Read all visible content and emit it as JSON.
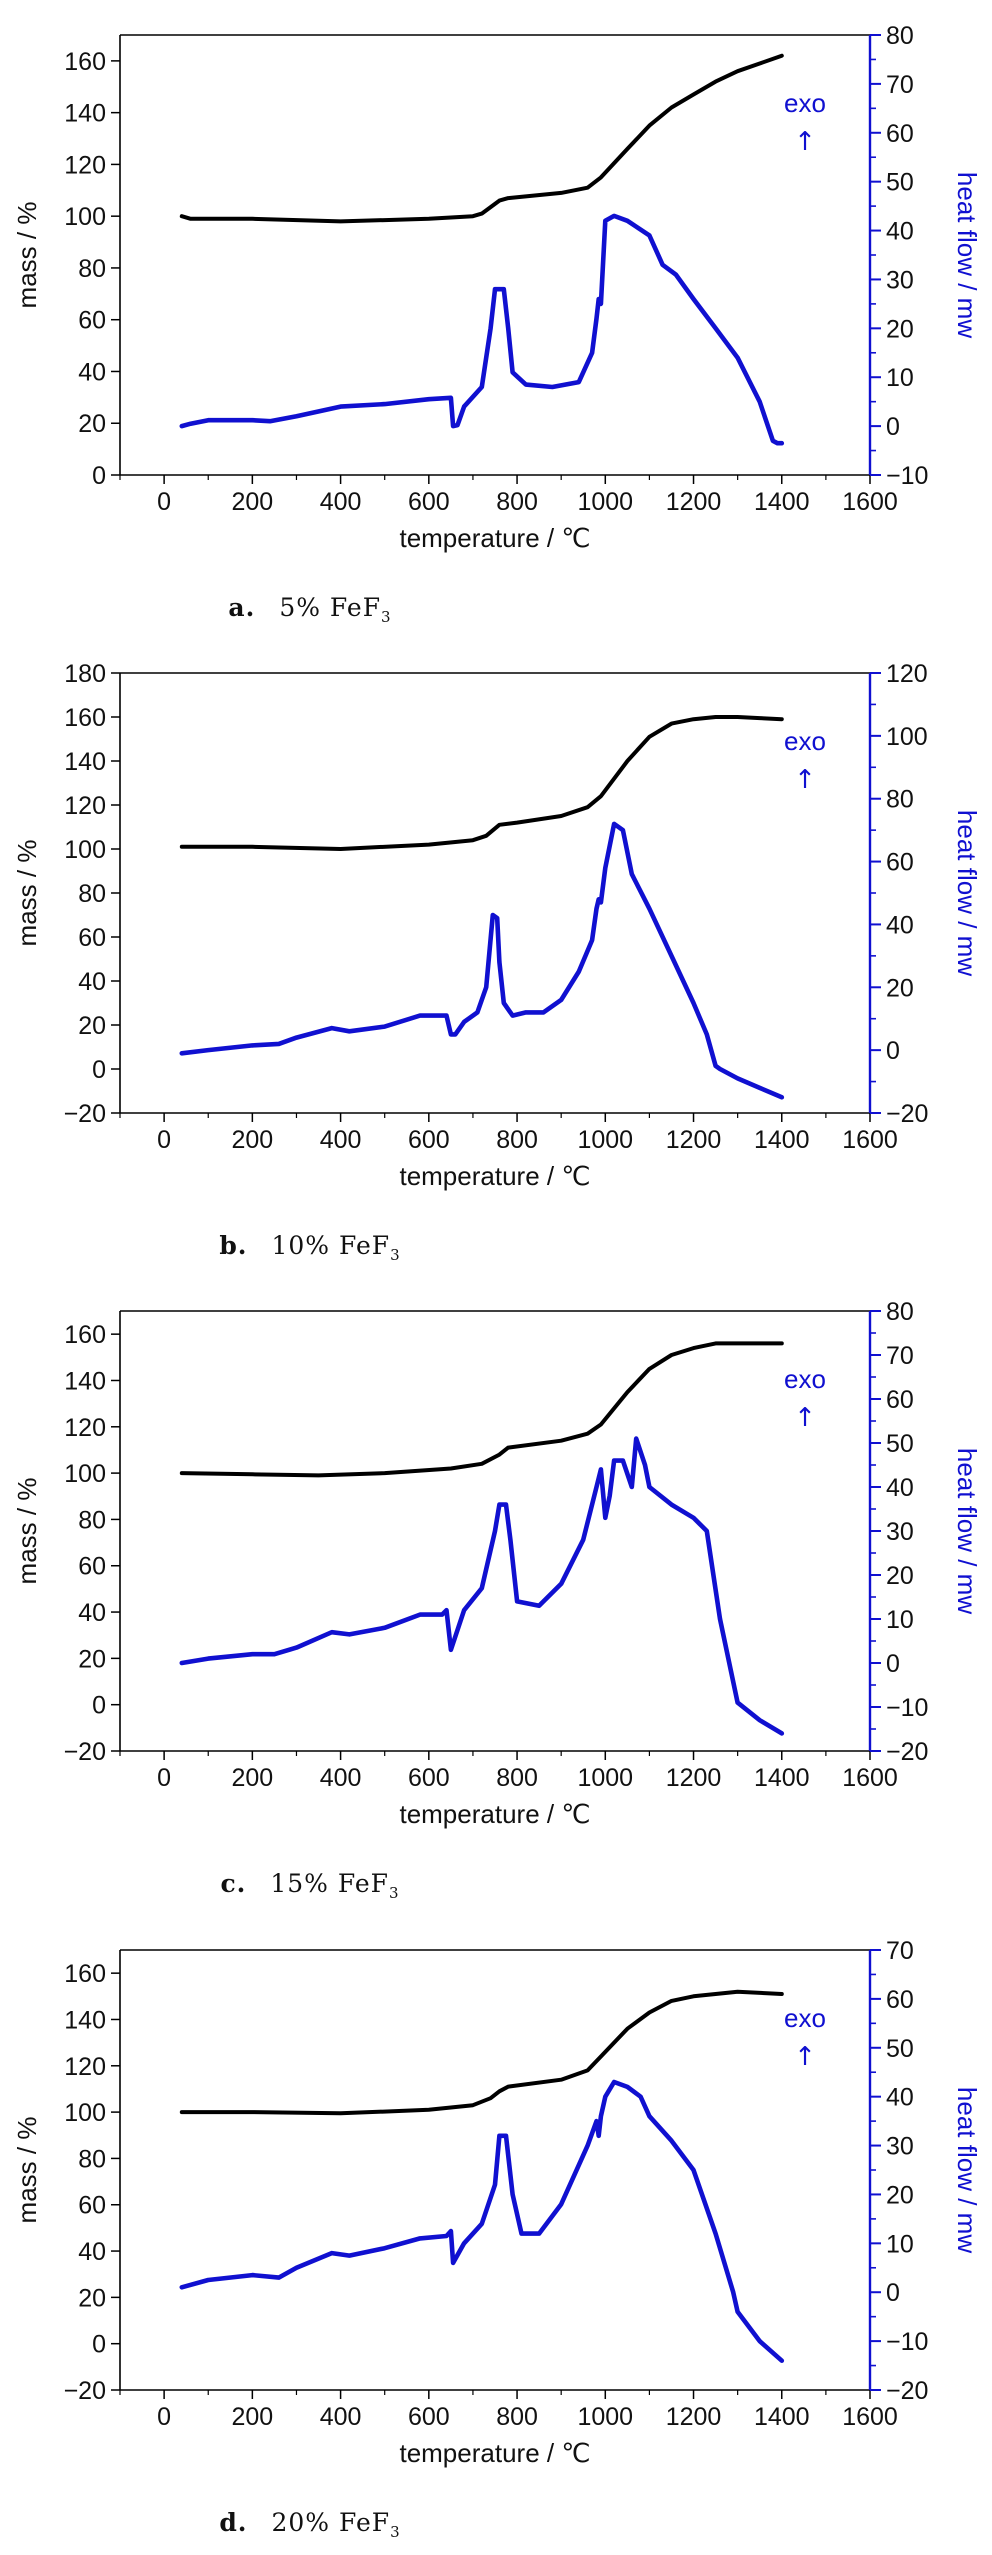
{
  "x_axis_label": "temperature / ℃",
  "left_axis_label": "mass / %",
  "right_axis_label": "heat flow / mw",
  "exo_label": "exo",
  "exo_arrow": "↑",
  "colors": {
    "mass": "#000000",
    "heat": "#1010d0",
    "axis_right": "#1010d0"
  },
  "chart_data": [
    {
      "type": "line",
      "caption_letter": "a.",
      "caption_text": "5% FeF",
      "caption_sub": "3",
      "xlim": [
        -100,
        1600
      ],
      "xticks": [
        0,
        200,
        400,
        600,
        800,
        1000,
        1200,
        1400,
        1600
      ],
      "ylim_left": [
        0,
        170
      ],
      "yticks_left": [
        0,
        20,
        40,
        60,
        80,
        100,
        120,
        140,
        160
      ],
      "ylim_right": [
        -10,
        80
      ],
      "yticks_right": [
        -10,
        0,
        10,
        20,
        30,
        40,
        50,
        60,
        70,
        80
      ],
      "series": [
        {
          "axis": "left",
          "color": "#000000",
          "x": [
            40,
            60,
            200,
            400,
            600,
            700,
            720,
            760,
            780,
            900,
            960,
            990,
            1050,
            1100,
            1150,
            1200,
            1250,
            1300,
            1350,
            1400
          ],
          "values": [
            100,
            99,
            99,
            98,
            99,
            100,
            101,
            106,
            107,
            109,
            111,
            115,
            126,
            135,
            142,
            147,
            152,
            156,
            159,
            162
          ]
        },
        {
          "axis": "right",
          "color": "#1010d0",
          "x": [
            40,
            60,
            100,
            200,
            240,
            300,
            400,
            500,
            600,
            650,
            655,
            665,
            680,
            720,
            740,
            750,
            770,
            780,
            790,
            820,
            880,
            940,
            970,
            980,
            985,
            990,
            1000,
            1020,
            1050,
            1100,
            1130,
            1160,
            1200,
            1250,
            1300,
            1350,
            1380,
            1390,
            1400
          ],
          "values": [
            0,
            0.5,
            1.2,
            1.2,
            1,
            2,
            4,
            4.5,
            5.5,
            5.8,
            0,
            0.2,
            4,
            8,
            20,
            28,
            28,
            20,
            11,
            8.5,
            8,
            9,
            15,
            22,
            26,
            25,
            42,
            43,
            42,
            39,
            33,
            31,
            26,
            20,
            14,
            5,
            -3,
            -3.5,
            -3.5
          ]
        }
      ]
    },
    {
      "type": "line",
      "caption_letter": "b.",
      "caption_text": "10% FeF",
      "caption_sub": "3",
      "xlim": [
        -100,
        1600
      ],
      "xticks": [
        0,
        200,
        400,
        600,
        800,
        1000,
        1200,
        1400,
        1600
      ],
      "ylim_left": [
        -20,
        180
      ],
      "yticks_left": [
        -20,
        0,
        20,
        40,
        60,
        80,
        100,
        120,
        140,
        160,
        180
      ],
      "ylim_right": [
        -20,
        120
      ],
      "yticks_right": [
        -20,
        0,
        20,
        40,
        60,
        80,
        100,
        120
      ],
      "series": [
        {
          "axis": "left",
          "color": "#000000",
          "x": [
            40,
            200,
            400,
            600,
            700,
            730,
            760,
            800,
            900,
            960,
            990,
            1050,
            1100,
            1150,
            1200,
            1250,
            1300,
            1350,
            1400
          ],
          "values": [
            101,
            101,
            100,
            102,
            104,
            106,
            111,
            112,
            115,
            119,
            124,
            140,
            151,
            157,
            159,
            160,
            160,
            159.5,
            159
          ]
        },
        {
          "axis": "right",
          "color": "#1010d0",
          "x": [
            40,
            100,
            200,
            260,
            300,
            380,
            420,
            500,
            580,
            640,
            650,
            660,
            680,
            710,
            730,
            745,
            755,
            760,
            770,
            790,
            820,
            860,
            900,
            940,
            970,
            980,
            985,
            990,
            1000,
            1020,
            1040,
            1060,
            1100,
            1150,
            1200,
            1230,
            1250,
            1260,
            1300,
            1350,
            1400
          ],
          "values": [
            -1,
            0,
            1.5,
            2,
            4,
            7,
            6,
            7.5,
            11,
            11,
            5,
            5,
            9,
            12,
            20,
            43,
            42,
            28,
            15,
            11,
            12,
            12,
            16,
            25,
            35,
            45,
            48,
            47,
            58,
            72,
            70,
            56,
            45,
            30,
            15,
            5,
            -5,
            -6,
            -9,
            -12,
            -15
          ]
        }
      ]
    },
    {
      "type": "line",
      "caption_letter": "c.",
      "caption_text": "15% FeF",
      "caption_sub": "3",
      "xlim": [
        -100,
        1600
      ],
      "xticks": [
        0,
        200,
        400,
        600,
        800,
        1000,
        1200,
        1400,
        1600
      ],
      "ylim_left": [
        -20,
        170
      ],
      "yticks_left": [
        -20,
        0,
        20,
        40,
        60,
        80,
        100,
        120,
        140,
        160
      ],
      "ylim_right": [
        -20,
        80
      ],
      "yticks_right": [
        -20,
        -10,
        0,
        10,
        20,
        30,
        40,
        50,
        60,
        70,
        80
      ],
      "series": [
        {
          "axis": "left",
          "color": "#000000",
          "x": [
            40,
            200,
            350,
            500,
            650,
            720,
            760,
            780,
            900,
            960,
            990,
            1050,
            1100,
            1150,
            1200,
            1250,
            1300,
            1400
          ],
          "values": [
            100,
            99.5,
            99,
            100,
            102,
            104,
            108,
            111,
            114,
            117,
            121,
            135,
            145,
            151,
            154,
            156,
            156,
            156
          ]
        },
        {
          "axis": "right",
          "color": "#1010d0",
          "x": [
            40,
            100,
            200,
            250,
            300,
            380,
            420,
            500,
            580,
            630,
            640,
            650,
            680,
            720,
            750,
            760,
            775,
            785,
            800,
            850,
            900,
            950,
            980,
            990,
            1000,
            1010,
            1020,
            1040,
            1060,
            1070,
            1090,
            1100,
            1150,
            1200,
            1230,
            1260,
            1300,
            1350,
            1400
          ],
          "values": [
            0,
            1,
            2,
            2,
            3.5,
            7,
            6.5,
            8,
            11,
            11,
            12,
            3,
            12,
            17,
            30,
            36,
            36,
            28,
            14,
            13,
            18,
            28,
            40,
            44,
            33,
            38,
            46,
            46,
            40,
            51,
            45,
            40,
            36,
            33,
            30,
            10,
            -9,
            -13,
            -16
          ]
        }
      ]
    },
    {
      "type": "line",
      "caption_letter": "d.",
      "caption_text": "20% FeF",
      "caption_sub": "3",
      "xlim": [
        -100,
        1600
      ],
      "xticks": [
        0,
        200,
        400,
        600,
        800,
        1000,
        1200,
        1400,
        1600
      ],
      "ylim_left": [
        -20,
        170
      ],
      "yticks_left": [
        -20,
        0,
        20,
        40,
        60,
        80,
        100,
        120,
        140,
        160
      ],
      "ylim_right": [
        -20,
        70
      ],
      "yticks_right": [
        -20,
        -10,
        0,
        10,
        20,
        30,
        40,
        50,
        60,
        70
      ],
      "series": [
        {
          "axis": "left",
          "color": "#000000",
          "x": [
            40,
            200,
            400,
            600,
            700,
            740,
            760,
            780,
            900,
            960,
            990,
            1050,
            1100,
            1150,
            1200,
            1250,
            1300,
            1400
          ],
          "values": [
            100,
            100,
            99.5,
            101,
            103,
            106,
            109,
            111,
            114,
            118,
            124,
            136,
            143,
            148,
            150,
            151,
            152,
            151
          ]
        },
        {
          "axis": "right",
          "color": "#1010d0",
          "x": [
            40,
            100,
            200,
            260,
            300,
            380,
            420,
            500,
            580,
            640,
            650,
            655,
            680,
            720,
            750,
            760,
            775,
            790,
            810,
            850,
            900,
            960,
            980,
            985,
            990,
            1000,
            1020,
            1050,
            1080,
            1100,
            1150,
            1200,
            1250,
            1290,
            1300,
            1350,
            1400
          ],
          "values": [
            1,
            2.5,
            3.5,
            3,
            5,
            8,
            7.5,
            9,
            11,
            11.5,
            12.5,
            6,
            10,
            14,
            22,
            32,
            32,
            20,
            12,
            12,
            18,
            30,
            35,
            32,
            36,
            40,
            43,
            42,
            40,
            36,
            31,
            25,
            12,
            0,
            -4,
            -10,
            -14
          ]
        }
      ]
    }
  ]
}
